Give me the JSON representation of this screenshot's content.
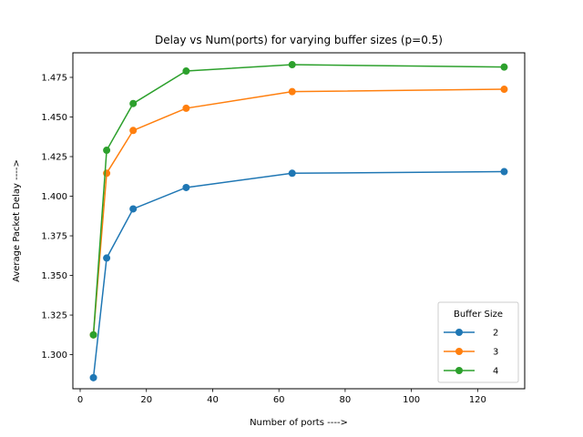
{
  "chart_data": {
    "type": "line",
    "title": "Delay vs Num(ports) for varying buffer sizes (p=0.5)",
    "xlabel": "Number of ports ---->",
    "ylabel": "Average Packet Delay ---->",
    "xlim": [
      -2.2,
      134.2
    ],
    "ylim": [
      1.2785,
      1.4905
    ],
    "xticks": [
      0,
      20,
      40,
      60,
      80,
      100,
      120
    ],
    "xtick_labels": [
      "0",
      "20",
      "40",
      "60",
      "80",
      "100",
      "120"
    ],
    "yticks": [
      1.3,
      1.325,
      1.35,
      1.375,
      1.4,
      1.425,
      1.45,
      1.475
    ],
    "ytick_labels": [
      "1.300",
      "1.325",
      "1.350",
      "1.375",
      "1.400",
      "1.425",
      "1.450",
      "1.475"
    ],
    "grid": false,
    "legend": {
      "title": "Buffer Size",
      "placement": "lower-right"
    },
    "x": [
      4,
      8,
      16,
      32,
      64,
      128
    ],
    "series": [
      {
        "name": "2",
        "color": "#1f77b4",
        "values": [
          1.2855,
          1.361,
          1.392,
          1.4055,
          1.4145,
          1.4155
        ]
      },
      {
        "name": "3",
        "color": "#ff7f0e",
        "values": [
          1.3125,
          1.4145,
          1.4415,
          1.4555,
          1.466,
          1.4675
        ]
      },
      {
        "name": "4",
        "color": "#2ca02c",
        "values": [
          1.3125,
          1.429,
          1.4585,
          1.479,
          1.483,
          1.4815
        ]
      }
    ]
  }
}
